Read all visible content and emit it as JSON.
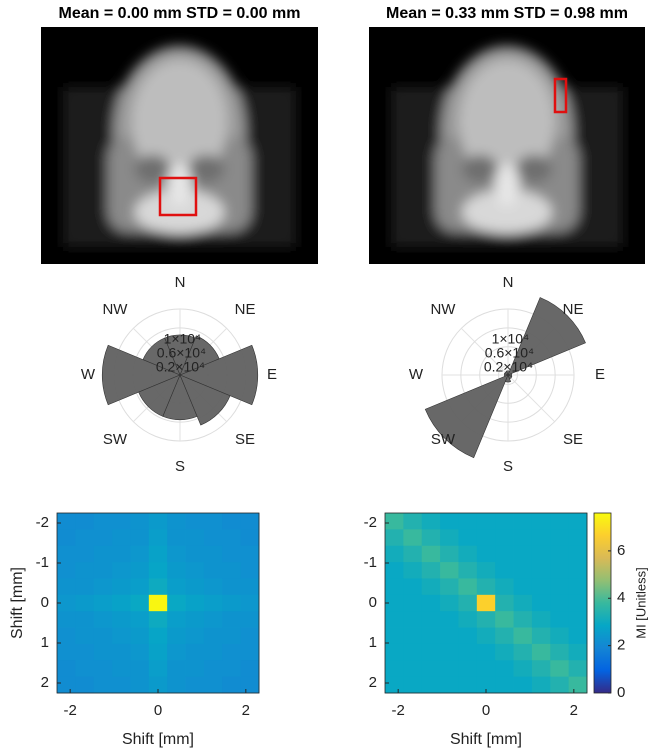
{
  "chart_data": [
    {
      "type": "image",
      "title": "Mean = 0.00 mm STD = 0.00 mm"
    },
    {
      "type": "image",
      "title": "Mean = 0.33 mm STD = 0.98 mm"
    },
    {
      "type": "polar_bar",
      "categories": [
        "E",
        "NE",
        "N",
        "NW",
        "W",
        "SW",
        "S",
        "SE"
      ],
      "values": [
        16500,
        9000,
        8500,
        8500,
        16500,
        9500,
        9500,
        11500
      ],
      "rlim": [
        0,
        14000
      ],
      "rticks": [
        {
          "value": 2000,
          "label": "0.2×10⁴"
        },
        {
          "value": 6000,
          "label": "0.6×10⁴"
        },
        {
          "value": 10000,
          "label": "1×10⁴"
        }
      ],
      "color": "#606060"
    },
    {
      "type": "polar_bar",
      "categories": [
        "E",
        "NE",
        "N",
        "NW",
        "W",
        "SW",
        "S",
        "SE"
      ],
      "values": [
        800,
        17800,
        900,
        800,
        800,
        19000,
        1500,
        900
      ],
      "rlim": [
        0,
        14000
      ],
      "rticks": [
        {
          "value": 2000,
          "label": "0.2×10⁴"
        },
        {
          "value": 6000,
          "label": "0.6×10⁴"
        },
        {
          "value": 10000,
          "label": "1×10⁴"
        }
      ],
      "color": "#606060"
    },
    {
      "type": "heatmap",
      "xlabel": "Shift [mm]",
      "ylabel": "Shift [mm]",
      "xlim": [
        -2.3,
        2.3
      ],
      "ylim": [
        -2.25,
        2.25
      ],
      "y_reversed": true,
      "xticks": [
        -2,
        0,
        2
      ],
      "yticks": [
        -2,
        -1,
        0,
        1,
        2
      ],
      "clim": [
        0,
        7.6
      ],
      "colormap": [
        "#352a87",
        "#0363e1",
        "#1485d4",
        "#06a7c6",
        "#38b99e",
        "#92bf73",
        "#d9ba56",
        "#fcce2e",
        "#f9fb0e"
      ],
      "z": [
        [
          2.1,
          2.1,
          2.2,
          2.2,
          2.3,
          2.5,
          2.3,
          2.2,
          2.2,
          2.1,
          2.1
        ],
        [
          2.1,
          2.2,
          2.2,
          2.3,
          2.3,
          2.6,
          2.3,
          2.3,
          2.2,
          2.2,
          2.1
        ],
        [
          2.2,
          2.2,
          2.3,
          2.3,
          2.4,
          2.7,
          2.4,
          2.3,
          2.3,
          2.2,
          2.2
        ],
        [
          2.2,
          2.3,
          2.3,
          2.4,
          2.5,
          2.8,
          2.5,
          2.4,
          2.3,
          2.3,
          2.2
        ],
        [
          2.3,
          2.3,
          2.4,
          2.5,
          2.6,
          3.0,
          2.6,
          2.5,
          2.4,
          2.3,
          2.3
        ],
        [
          2.4,
          2.5,
          2.6,
          2.7,
          2.9,
          7.5,
          2.9,
          2.7,
          2.6,
          2.5,
          2.4
        ],
        [
          2.3,
          2.3,
          2.4,
          2.5,
          2.6,
          3.0,
          2.6,
          2.5,
          2.4,
          2.3,
          2.3
        ],
        [
          2.2,
          2.3,
          2.3,
          2.4,
          2.5,
          2.8,
          2.5,
          2.4,
          2.3,
          2.3,
          2.2
        ],
        [
          2.2,
          2.2,
          2.3,
          2.3,
          2.4,
          2.7,
          2.4,
          2.3,
          2.3,
          2.2,
          2.2
        ],
        [
          2.1,
          2.2,
          2.2,
          2.3,
          2.3,
          2.6,
          2.3,
          2.3,
          2.2,
          2.2,
          2.1
        ],
        [
          2.1,
          2.1,
          2.2,
          2.2,
          2.3,
          2.5,
          2.3,
          2.2,
          2.2,
          2.1,
          2.1
        ]
      ]
    },
    {
      "type": "heatmap",
      "xlabel": "Shift [mm]",
      "xlim": [
        -2.3,
        2.3
      ],
      "ylim": [
        -2.25,
        2.25
      ],
      "y_reversed": true,
      "xticks": [
        -2,
        0,
        2
      ],
      "yticks": [
        -2,
        -1,
        0,
        1,
        2
      ],
      "clim": [
        0,
        7.6
      ],
      "colormap": [
        "#352a87",
        "#0363e1",
        "#1485d4",
        "#06a7c6",
        "#38b99e",
        "#92bf73",
        "#d9ba56",
        "#fcce2e",
        "#f9fb0e"
      ],
      "colorbar": {
        "label": "MI [Unitless]",
        "ticks": [
          0,
          2,
          4,
          6
        ]
      },
      "z": [
        [
          3.8,
          3.4,
          3.1,
          2.9,
          2.9,
          2.9,
          2.9,
          2.9,
          2.9,
          2.9,
          2.9
        ],
        [
          3.4,
          3.8,
          3.4,
          3.1,
          2.9,
          2.9,
          2.9,
          2.9,
          2.9,
          2.9,
          2.9
        ],
        [
          3.1,
          3.4,
          3.8,
          3.4,
          3.1,
          2.9,
          2.9,
          2.9,
          2.9,
          2.9,
          2.9
        ],
        [
          2.9,
          3.1,
          3.4,
          3.8,
          3.4,
          3.1,
          2.9,
          2.9,
          2.9,
          2.9,
          2.9
        ],
        [
          2.9,
          2.9,
          3.1,
          3.4,
          3.8,
          3.4,
          3.1,
          2.9,
          2.9,
          2.9,
          2.9
        ],
        [
          2.9,
          2.9,
          2.9,
          3.1,
          3.4,
          6.7,
          3.4,
          3.1,
          2.9,
          2.9,
          2.9
        ],
        [
          2.9,
          2.9,
          2.9,
          2.9,
          3.1,
          3.4,
          3.8,
          3.4,
          3.1,
          2.9,
          2.9
        ],
        [
          2.9,
          2.9,
          2.9,
          2.9,
          2.9,
          3.1,
          3.4,
          3.8,
          3.4,
          3.1,
          2.9
        ],
        [
          2.9,
          2.9,
          2.9,
          2.9,
          2.9,
          2.9,
          3.1,
          3.4,
          3.8,
          3.4,
          3.1
        ],
        [
          2.9,
          2.9,
          2.9,
          2.9,
          2.9,
          2.9,
          2.9,
          3.1,
          3.4,
          3.8,
          3.4
        ],
        [
          2.9,
          2.9,
          2.9,
          2.9,
          2.9,
          2.9,
          2.9,
          2.9,
          3.1,
          3.4,
          3.8
        ]
      ]
    }
  ]
}
